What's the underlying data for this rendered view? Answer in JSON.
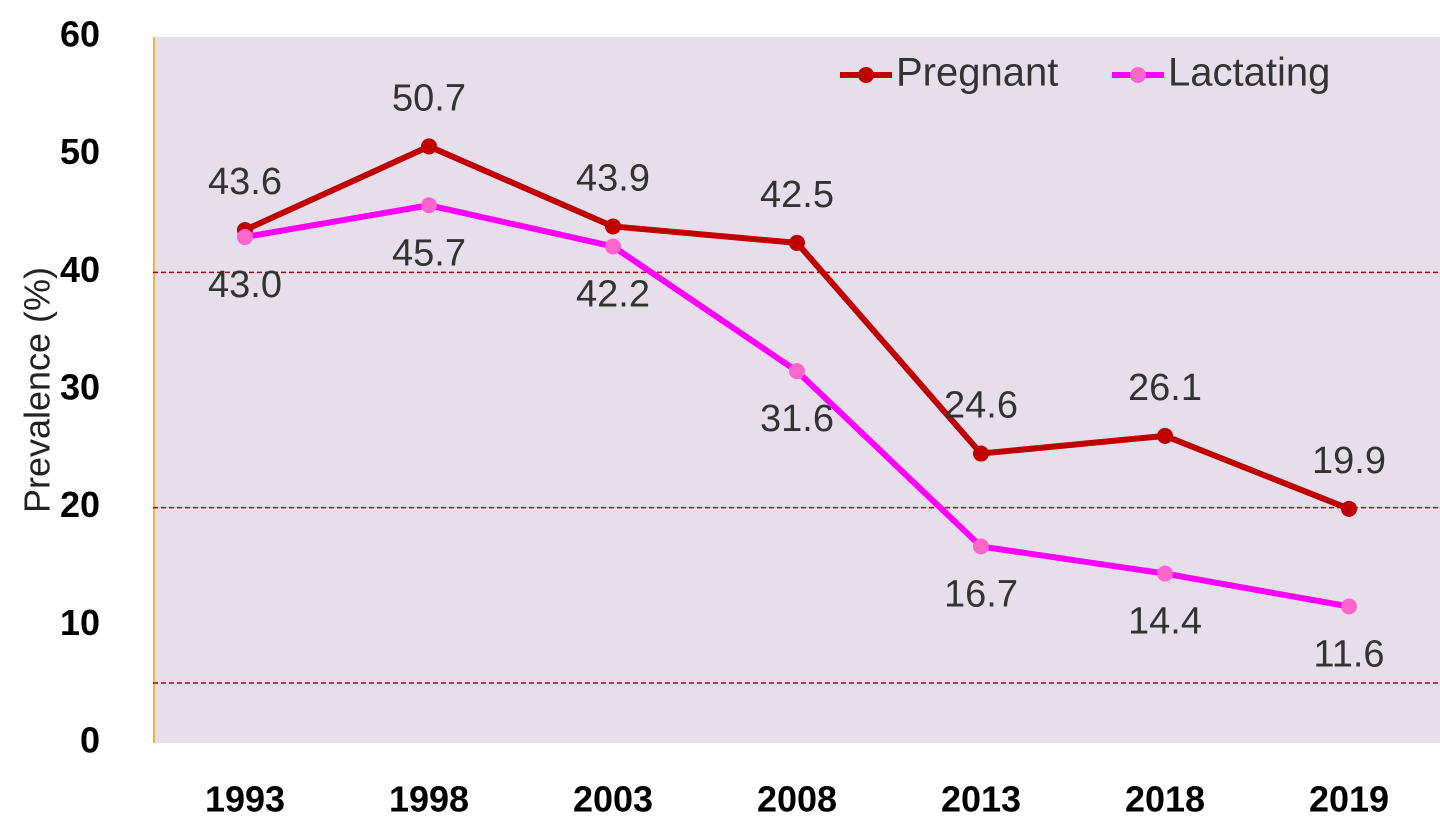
{
  "chart_data": {
    "type": "line",
    "y_label": "Prevalence (%)",
    "categories": [
      "1993",
      "1998",
      "2003",
      "2008",
      "2013",
      "2018",
      "2019"
    ],
    "series": [
      {
        "name": "Pregnant",
        "color": "#c00000",
        "values": [
          43.6,
          50.7,
          43.9,
          42.5,
          24.6,
          26.1,
          19.9
        ]
      },
      {
        "name": "Lactating",
        "color": "#ff00ff",
        "values": [
          43.0,
          45.7,
          42.2,
          31.6,
          16.7,
          14.4,
          11.6
        ],
        "value_labels": [
          "43.0",
          "45.7",
          "42.2",
          "31.6",
          "16.7",
          "14.4",
          "11.6"
        ]
      }
    ],
    "ylim": [
      0,
      60
    ],
    "yticks": [
      0,
      10,
      20,
      30,
      40,
      50,
      60
    ],
    "grid_lines": [
      40,
      20,
      5.1
    ],
    "legend": "top-right"
  }
}
